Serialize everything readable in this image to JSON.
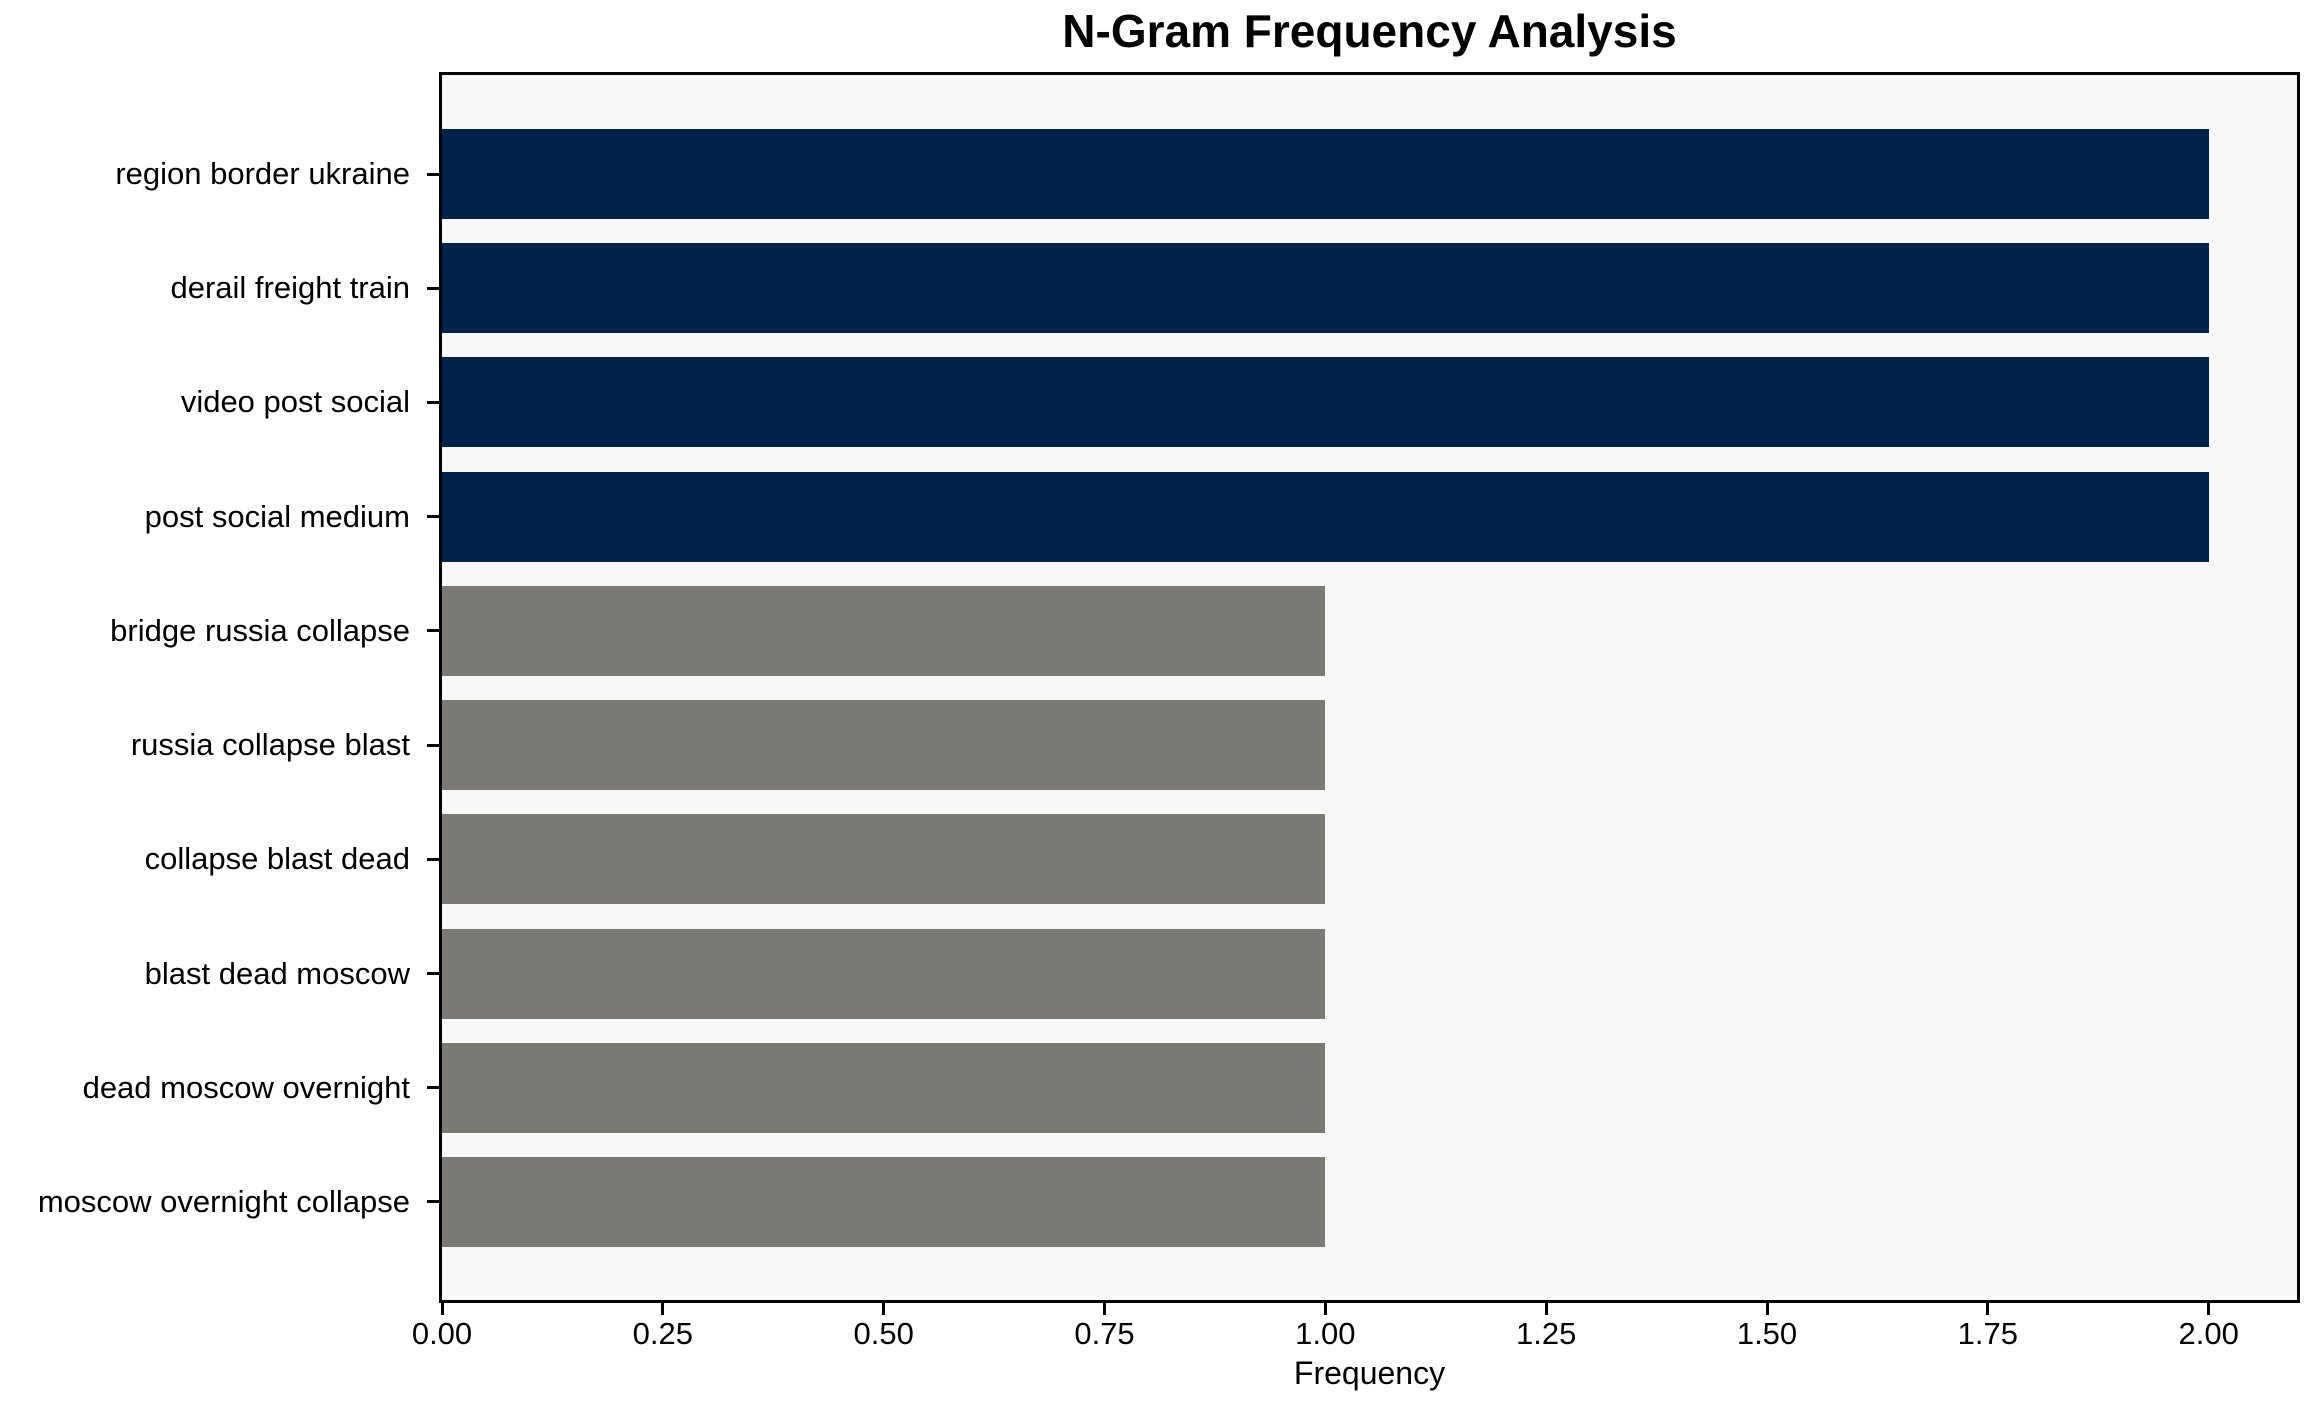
{
  "chart_data": {
    "type": "bar",
    "orientation": "horizontal",
    "title": "N-Gram Frequency Analysis",
    "xlabel": "Frequency",
    "ylabel": "",
    "categories": [
      "region border ukraine",
      "derail freight train",
      "video post social",
      "post social medium",
      "bridge russia collapse",
      "russia collapse blast",
      "collapse blast dead",
      "blast dead moscow",
      "dead moscow overnight",
      "moscow overnight collapse"
    ],
    "values": [
      2,
      2,
      2,
      2,
      1,
      1,
      1,
      1,
      1,
      1
    ],
    "bar_colors": [
      "#02244c",
      "#02244c",
      "#02244c",
      "#02244c",
      "#7b7a74",
      "#7b7a74",
      "#7b7a74",
      "#7b7a74",
      "#7b7a74",
      "#7b7a74"
    ],
    "xlim": [
      0,
      2.1
    ],
    "x_ticks": [
      0,
      0.25,
      0.5,
      0.75,
      1,
      1.25,
      1.5,
      1.75,
      2
    ],
    "x_tick_labels": [
      "0.00",
      "0.25",
      "0.50",
      "0.75",
      "1.00",
      "1.25",
      "1.50",
      "1.75",
      "2.00"
    ],
    "grid": false,
    "legend": null,
    "colors": {
      "highlight_bar": "#02244c",
      "default_bar": "#7b7a74",
      "plot_background": "#f8f8f8",
      "figure_background": "#ffffff",
      "spine": "#000000",
      "text": "#000000"
    }
  }
}
